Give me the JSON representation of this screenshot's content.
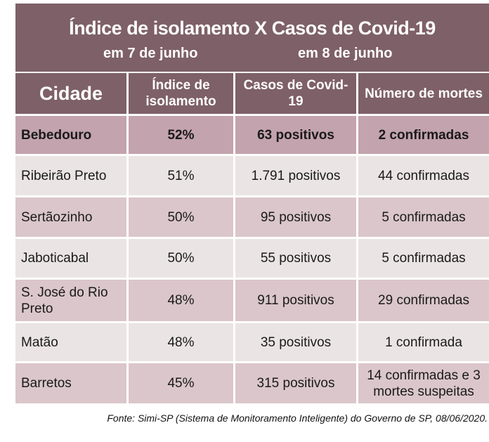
{
  "title": {
    "main": "Índice de isolamento X Casos de Covid-19",
    "left_sub": "em 7 de junho",
    "right_sub": "em 8 de junho"
  },
  "headers": [
    "Cidade",
    "Índice de isolamento",
    "Casos de Covid-19",
    "Número de mortes"
  ],
  "rows": [
    {
      "city": "Bebedouro",
      "index": "52%",
      "cases": "63 positivos",
      "deaths": "2 confirmadas"
    },
    {
      "city": "Ribeirão Preto",
      "index": "51%",
      "cases": "1.791 positivos",
      "deaths": "44 confirmadas"
    },
    {
      "city": "Sertãozinho",
      "index": "50%",
      "cases": "95 positivos",
      "deaths": "5 confirmadas"
    },
    {
      "city": "Jaboticabal",
      "index": "50%",
      "cases": "55 positivos",
      "deaths": "5 confirmadas"
    },
    {
      "city": "S. José do Rio Preto",
      "index": "48%",
      "cases": "911 positivos",
      "deaths": "29 confirmadas"
    },
    {
      "city": "Matão",
      "index": "48%",
      "cases": "35 positivos",
      "deaths": "1 confirmada"
    },
    {
      "city": "Barretos",
      "index": "45%",
      "cases": "315 positivos",
      "deaths": "14 confirmadas e 3 mortes suspeitas"
    }
  ],
  "source": "Fonte: Simi-SP (Sistema de Monitoramento Inteligente) do Governo de SP, 08/06/2020.",
  "colors": {
    "header": "#7e6068",
    "highlight_row": "#c3a3ad",
    "light_row": "#ebe4e4",
    "pink_row": "#dac6cb"
  }
}
